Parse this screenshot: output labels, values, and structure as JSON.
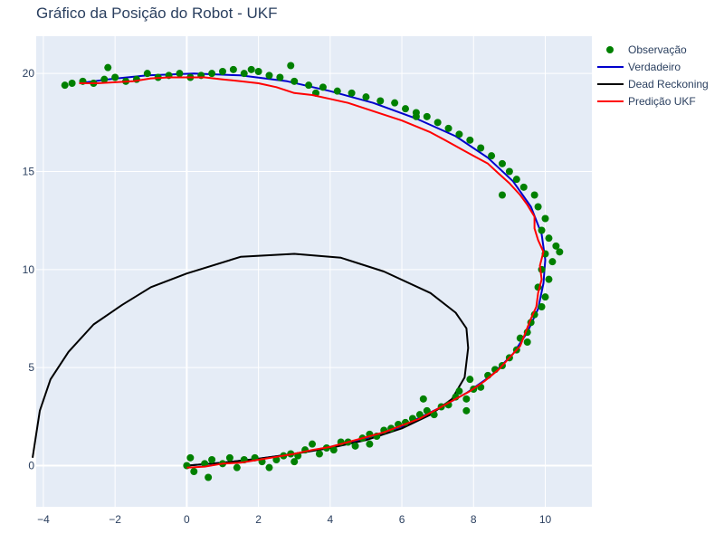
{
  "chart_data": {
    "type": "scatter",
    "title": "Gráfico da Posição do Robot - UKF",
    "xlabel": "",
    "ylabel": "",
    "xlim": [
      -4.2,
      11.3
    ],
    "ylim": [
      -2.1,
      21.9
    ],
    "xticks": [
      -4,
      -2,
      0,
      2,
      4,
      6,
      8,
      10
    ],
    "yticks": [
      0,
      5,
      10,
      15,
      20
    ],
    "grid": true,
    "legend_position": "top-right",
    "colors": {
      "plot_bg": "#e5ecf6",
      "grid": "#ffffff",
      "observacao": "#008000",
      "verdadeiro": "#0000cc",
      "dead_reckoning": "#000000",
      "predicao_ukf": "#ff0000"
    },
    "series": [
      {
        "name": "Observação",
        "mode": "markers",
        "points": [
          [
            0.0,
            0.0
          ],
          [
            0.1,
            0.4
          ],
          [
            0.2,
            -0.3
          ],
          [
            0.5,
            0.1
          ],
          [
            0.7,
            0.3
          ],
          [
            0.6,
            -0.6
          ],
          [
            1.0,
            0.1
          ],
          [
            1.2,
            0.4
          ],
          [
            1.4,
            -0.1
          ],
          [
            1.6,
            0.3
          ],
          [
            1.9,
            0.4
          ],
          [
            2.1,
            0.2
          ],
          [
            2.3,
            -0.1
          ],
          [
            2.5,
            0.3
          ],
          [
            2.7,
            0.5
          ],
          [
            2.9,
            0.6
          ],
          [
            3.1,
            0.5
          ],
          [
            3.3,
            0.8
          ],
          [
            3.5,
            1.1
          ],
          [
            3.7,
            0.6
          ],
          [
            3.9,
            0.9
          ],
          [
            4.1,
            0.8
          ],
          [
            4.3,
            1.2
          ],
          [
            4.5,
            1.2
          ],
          [
            4.7,
            1.0
          ],
          [
            4.9,
            1.4
          ],
          [
            5.1,
            1.6
          ],
          [
            5.3,
            1.5
          ],
          [
            5.5,
            1.8
          ],
          [
            5.7,
            1.9
          ],
          [
            5.9,
            2.1
          ],
          [
            6.1,
            2.2
          ],
          [
            6.3,
            2.4
          ],
          [
            6.5,
            2.6
          ],
          [
            6.7,
            2.8
          ],
          [
            6.6,
            3.4
          ],
          [
            6.9,
            2.6
          ],
          [
            7.1,
            3.0
          ],
          [
            7.3,
            3.1
          ],
          [
            7.5,
            3.5
          ],
          [
            7.6,
            3.8
          ],
          [
            7.8,
            3.4
          ],
          [
            8.0,
            3.9
          ],
          [
            8.2,
            4.0
          ],
          [
            7.9,
            4.4
          ],
          [
            8.4,
            4.6
          ],
          [
            8.6,
            4.9
          ],
          [
            8.8,
            5.1
          ],
          [
            9.0,
            5.5
          ],
          [
            9.2,
            5.9
          ],
          [
            9.3,
            6.5
          ],
          [
            9.5,
            6.8
          ],
          [
            9.6,
            7.3
          ],
          [
            9.7,
            7.7
          ],
          [
            9.9,
            8.1
          ],
          [
            10.0,
            8.6
          ],
          [
            9.8,
            9.1
          ],
          [
            10.1,
            9.5
          ],
          [
            9.9,
            10.0
          ],
          [
            10.2,
            10.4
          ],
          [
            10.0,
            10.8
          ],
          [
            10.3,
            11.2
          ],
          [
            10.1,
            11.6
          ],
          [
            9.9,
            12.0
          ],
          [
            10.0,
            12.6
          ],
          [
            9.8,
            13.2
          ],
          [
            9.7,
            13.8
          ],
          [
            9.4,
            14.2
          ],
          [
            9.2,
            14.6
          ],
          [
            9.0,
            15.0
          ],
          [
            8.8,
            15.4
          ],
          [
            8.5,
            15.8
          ],
          [
            8.2,
            16.2
          ],
          [
            7.9,
            16.6
          ],
          [
            7.6,
            16.9
          ],
          [
            7.3,
            17.2
          ],
          [
            7.0,
            17.5
          ],
          [
            6.7,
            17.8
          ],
          [
            6.4,
            18.0
          ],
          [
            6.1,
            18.2
          ],
          [
            5.8,
            18.5
          ],
          [
            5.4,
            18.6
          ],
          [
            5.0,
            18.8
          ],
          [
            4.6,
            19.0
          ],
          [
            4.2,
            19.1
          ],
          [
            3.8,
            19.3
          ],
          [
            3.4,
            19.4
          ],
          [
            3.0,
            19.6
          ],
          [
            2.6,
            19.8
          ],
          [
            2.3,
            19.9
          ],
          [
            2.0,
            20.1
          ],
          [
            1.6,
            20.0
          ],
          [
            1.3,
            20.2
          ],
          [
            1.0,
            20.1
          ],
          [
            0.7,
            20.0
          ],
          [
            0.4,
            19.9
          ],
          [
            0.1,
            19.8
          ],
          [
            -0.2,
            20.0
          ],
          [
            -0.5,
            19.9
          ],
          [
            -0.8,
            19.8
          ],
          [
            -1.1,
            20.0
          ],
          [
            -1.4,
            19.7
          ],
          [
            -1.7,
            19.6
          ],
          [
            -2.0,
            19.8
          ],
          [
            -2.3,
            19.7
          ],
          [
            -2.6,
            19.5
          ],
          [
            -2.9,
            19.6
          ],
          [
            -3.2,
            19.5
          ],
          [
            -3.4,
            19.4
          ],
          [
            -2.2,
            20.3
          ],
          [
            1.8,
            20.2
          ],
          [
            2.9,
            20.4
          ],
          [
            3.6,
            19.0
          ],
          [
            6.4,
            17.8
          ],
          [
            8.8,
            13.8
          ],
          [
            10.4,
            10.9
          ],
          [
            9.5,
            6.3
          ],
          [
            7.8,
            2.8
          ],
          [
            5.1,
            1.1
          ],
          [
            3.0,
            0.2
          ]
        ]
      },
      {
        "name": "Verdadeiro",
        "mode": "lines",
        "points": [
          [
            0,
            0
          ],
          [
            1,
            0.15
          ],
          [
            2,
            0.35
          ],
          [
            3,
            0.6
          ],
          [
            4,
            0.95
          ],
          [
            5,
            1.4
          ],
          [
            6,
            2.0
          ],
          [
            7,
            2.9
          ],
          [
            7.8,
            3.7
          ],
          [
            8.5,
            4.6
          ],
          [
            9.1,
            5.7
          ],
          [
            9.5,
            6.8
          ],
          [
            9.8,
            8.0
          ],
          [
            9.95,
            9.3
          ],
          [
            10.0,
            10.5
          ],
          [
            9.9,
            11.8
          ],
          [
            9.6,
            13.2
          ],
          [
            9.1,
            14.5
          ],
          [
            8.4,
            15.7
          ],
          [
            7.5,
            16.8
          ],
          [
            6.4,
            17.7
          ],
          [
            5.2,
            18.5
          ],
          [
            4.0,
            19.1
          ],
          [
            2.8,
            19.6
          ],
          [
            1.5,
            19.9
          ],
          [
            0.2,
            20.0
          ],
          [
            -1.1,
            19.9
          ],
          [
            -2.2,
            19.7
          ],
          [
            -3.0,
            19.5
          ]
        ]
      },
      {
        "name": "Dead Reckoning",
        "mode": "lines",
        "points": [
          [
            0,
            0
          ],
          [
            1,
            0.15
          ],
          [
            2,
            0.35
          ],
          [
            3,
            0.6
          ],
          [
            4,
            0.9
          ],
          [
            5,
            1.3
          ],
          [
            6,
            1.9
          ],
          [
            6.8,
            2.6
          ],
          [
            7.4,
            3.4
          ],
          [
            7.75,
            4.5
          ],
          [
            7.85,
            6.0
          ],
          [
            7.8,
            7.0
          ],
          [
            7.5,
            7.8
          ],
          [
            6.8,
            8.8
          ],
          [
            5.5,
            9.9
          ],
          [
            4.3,
            10.6
          ],
          [
            3.0,
            10.8
          ],
          [
            1.5,
            10.65
          ],
          [
            0,
            9.8
          ],
          [
            -1.0,
            9.1
          ],
          [
            -1.8,
            8.2
          ],
          [
            -2.6,
            7.2
          ],
          [
            -3.3,
            5.8
          ],
          [
            -3.8,
            4.4
          ],
          [
            -4.1,
            2.8
          ],
          [
            -4.25,
            1.0
          ],
          [
            -4.3,
            0.4
          ]
        ]
      },
      {
        "name": "Predição UKF",
        "mode": "lines",
        "points": [
          [
            0,
            -0.1
          ],
          [
            0.5,
            -0.05
          ],
          [
            1,
            0.1
          ],
          [
            1.5,
            0.15
          ],
          [
            2,
            0.3
          ],
          [
            2.5,
            0.45
          ],
          [
            3,
            0.6
          ],
          [
            3.5,
            0.8
          ],
          [
            4,
            0.95
          ],
          [
            4.5,
            1.2
          ],
          [
            5,
            1.45
          ],
          [
            5.5,
            1.7
          ],
          [
            6,
            2.05
          ],
          [
            6.5,
            2.4
          ],
          [
            7,
            2.9
          ],
          [
            7.5,
            3.4
          ],
          [
            7.9,
            3.8
          ],
          [
            8.3,
            4.3
          ],
          [
            8.7,
            4.9
          ],
          [
            9.0,
            5.5
          ],
          [
            9.3,
            6.1
          ],
          [
            9.45,
            6.8
          ],
          [
            9.6,
            7.5
          ],
          [
            9.75,
            8.1
          ],
          [
            9.8,
            8.8
          ],
          [
            9.9,
            9.5
          ],
          [
            9.85,
            10.2
          ],
          [
            9.95,
            10.9
          ],
          [
            9.8,
            11.5
          ],
          [
            9.7,
            12.1
          ],
          [
            9.7,
            12.7
          ],
          [
            9.5,
            13.3
          ],
          [
            9.3,
            13.8
          ],
          [
            9.0,
            14.4
          ],
          [
            8.7,
            14.9
          ],
          [
            8.4,
            15.4
          ],
          [
            8.0,
            15.8
          ],
          [
            7.6,
            16.2
          ],
          [
            7.2,
            16.6
          ],
          [
            6.8,
            17.0
          ],
          [
            6.4,
            17.3
          ],
          [
            6.0,
            17.6
          ],
          [
            5.5,
            17.9
          ],
          [
            5.0,
            18.2
          ],
          [
            4.5,
            18.5
          ],
          [
            4.0,
            18.7
          ],
          [
            3.5,
            18.9
          ],
          [
            3.0,
            19.0
          ],
          [
            2.5,
            19.3
          ],
          [
            2.0,
            19.5
          ],
          [
            1.5,
            19.6
          ],
          [
            1.0,
            19.7
          ],
          [
            0.5,
            19.8
          ],
          [
            0.0,
            19.8
          ],
          [
            -0.5,
            19.8
          ],
          [
            -1.0,
            19.75
          ],
          [
            -1.5,
            19.6
          ],
          [
            -2.0,
            19.55
          ],
          [
            -2.5,
            19.5
          ],
          [
            -3.0,
            19.5
          ]
        ]
      }
    ]
  }
}
